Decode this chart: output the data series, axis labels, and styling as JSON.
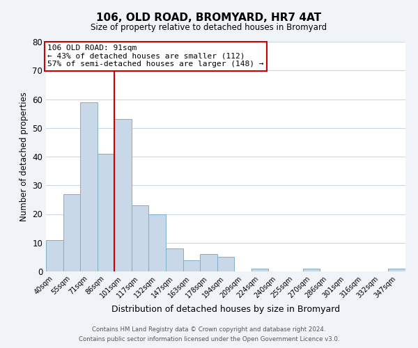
{
  "title": "106, OLD ROAD, BROMYARD, HR7 4AT",
  "subtitle": "Size of property relative to detached houses in Bromyard",
  "xlabel": "Distribution of detached houses by size in Bromyard",
  "ylabel": "Number of detached properties",
  "bar_labels": [
    "40sqm",
    "55sqm",
    "71sqm",
    "86sqm",
    "101sqm",
    "117sqm",
    "132sqm",
    "147sqm",
    "163sqm",
    "178sqm",
    "194sqm",
    "209sqm",
    "224sqm",
    "240sqm",
    "255sqm",
    "270sqm",
    "286sqm",
    "301sqm",
    "316sqm",
    "332sqm",
    "347sqm"
  ],
  "bar_values": [
    11,
    27,
    59,
    41,
    53,
    23,
    20,
    8,
    4,
    6,
    5,
    0,
    1,
    0,
    0,
    1,
    0,
    0,
    0,
    0,
    1
  ],
  "bar_color": "#c8d8e8",
  "bar_edge_color": "#7fafc8",
  "vline_color": "#cc0000",
  "vline_bar_index": 3,
  "annotation_text_line1": "106 OLD ROAD: 91sqm",
  "annotation_text_line2": "← 43% of detached houses are smaller (112)",
  "annotation_text_line3": "57% of semi-detached houses are larger (148) →",
  "annotation_box_color": "#ffffff",
  "annotation_box_edge": "#cc0000",
  "ylim": [
    0,
    80
  ],
  "yticks": [
    0,
    10,
    20,
    30,
    40,
    50,
    60,
    70,
    80
  ],
  "footer_line1": "Contains HM Land Registry data © Crown copyright and database right 2024.",
  "footer_line2": "Contains public sector information licensed under the Open Government Licence v3.0.",
  "background_color": "#f0f4f8",
  "plot_background_color": "#ffffff",
  "grid_color": "#c8d8e8"
}
